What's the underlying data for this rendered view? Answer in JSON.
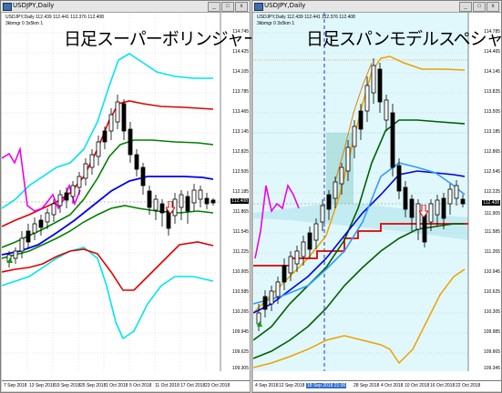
{
  "left": {
    "window_title": "USDJPY,Daily",
    "header_line": "USDJPY,Daily  112.439 112.441 112.376 112.408",
    "header_sub": "3kbmgr 0 3x5km 1",
    "big_title": "日足スーパーボリンジャー",
    "y_labels": [
      "114.745",
      "114.425",
      "114.105",
      "113.785",
      "113.465",
      "113.145",
      "112.825",
      "112.505",
      "112.185",
      "111.865",
      "111.545",
      "111.225",
      "110.905",
      "110.585",
      "110.265",
      "109.945",
      "109.625",
      "109.305"
    ],
    "current_price": "112.408",
    "x_ticks": [
      "7 Sep 2018",
      "13 Sep 2018",
      "19 Sep 2018",
      "25 Sep 2018",
      "1 Oct 2018",
      "5 Oct 2018",
      "11 Oct 2018",
      "17 Oct 2018",
      "23 Oct 2018"
    ]
  },
  "right": {
    "window_title": "USDJPY,Daily",
    "header_line": "USDJPY,Daily  112.439 112.441 112.376 112.408",
    "header_sub": "3kbmgr 0 3x5km 1",
    "big_title": "日足スパンモデルスペシャル",
    "y_labels": [
      "114.785",
      "114.465",
      "114.145",
      "113.825",
      "113.505",
      "113.185",
      "112.865",
      "112.545",
      "112.225",
      "111.905",
      "111.585",
      "111.265",
      "110.945",
      "110.625",
      "110.305",
      "109.985",
      "109.665",
      "109.345"
    ],
    "current_price": "112.408",
    "x_ticks": [
      "4 Sep 2018",
      "12 Sep 2018",
      "18 Sep 2018",
      "24 Sep 2018",
      "28 Sep 2018",
      "4 Oct 2018",
      "10 Oct 2018",
      "16 Oct 2018",
      "22 Oct 2018"
    ],
    "highlight_tick": "18 Sep 2018 21:00"
  },
  "window_buttons": {
    "min": "_",
    "max": "□",
    "close": "x"
  }
}
